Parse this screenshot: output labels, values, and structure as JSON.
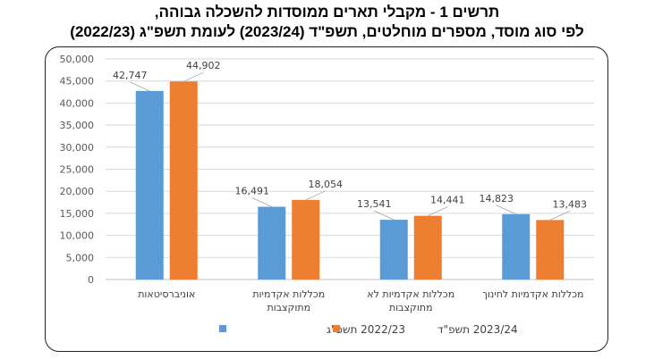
{
  "title_line1": "תרשים 1 - מקבלי תארים ממוסדות להשכלה גבוהה,",
  "title_line2": "לפי סוג מוסד, מספרים מוחלטים, תשפ\"ד (2023/24) לעומת תשפ\"ג (2022/23)",
  "colors": {
    "series_2022": "#5B9BD5",
    "series_2023": "#ED7D31",
    "grid": "#D9D9D9"
  },
  "chart_data": {
    "type": "bar",
    "title": "תרשים 1 - מקבלי תארים ממוסדות להשכלה גבוהה, לפי סוג מוסד, מספרים מוחלטים, תשפ\"ד (2023/24) לעומת תשפ\"ג (2022/23)",
    "xlabel": "",
    "ylabel": "",
    "ylim": [
      0,
      50000
    ],
    "yticks": [
      "0",
      "5,000",
      "10,000",
      "15,000",
      "20,000",
      "25,000",
      "30,000",
      "35,000",
      "40,000",
      "45,000",
      "50,000"
    ],
    "grid": true,
    "legend_position": "bottom",
    "categories": [
      [
        "אוניברסיטאות"
      ],
      [
        "מכללות אקדמיות",
        "מתוקצבות"
      ],
      [
        "מכללות אקדמיות לא",
        "מתוקצבות"
      ],
      [
        "מכללות אקדמיות לחינוך"
      ]
    ],
    "series": [
      {
        "name": "2022/23 תשפ\"ג",
        "values": [
          42747,
          16491,
          13541,
          14823
        ],
        "labels": [
          "42,747",
          "16,491",
          "13,541",
          "14,823"
        ]
      },
      {
        "name": "2023/24 תשפ\"ד",
        "values": [
          44902,
          18054,
          14441,
          13483
        ],
        "labels": [
          "44,902",
          "18,054",
          "14,441",
          "13,483"
        ]
      }
    ]
  }
}
